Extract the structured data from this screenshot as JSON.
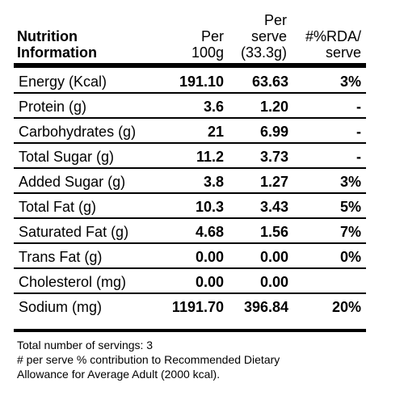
{
  "header": {
    "title_line1": "Nutrition",
    "title_line2": "Information",
    "per100_line1": "Per",
    "per100_line2": "100g",
    "perserve_line1": "Per",
    "perserve_line2": "serve",
    "perserve_line3": "(33.3g)",
    "rda_line1": "#%RDA/",
    "rda_line2": "serve"
  },
  "rows": [
    {
      "name": "Energy (Kcal)",
      "per100": "191.10",
      "perserve": "63.63",
      "rda": "3%"
    },
    {
      "name": "Protein (g)",
      "per100": "3.6",
      "perserve": "1.20",
      "rda": "-"
    },
    {
      "name": "Carbohydrates (g)",
      "per100": "21",
      "perserve": "6.99",
      "rda": "-"
    },
    {
      "name": "Total Sugar (g)",
      "per100": "11.2",
      "perserve": "3.73",
      "rda": "-"
    },
    {
      "name": "Added Sugar (g)",
      "per100": "3.8",
      "perserve": "1.27",
      "rda": "3%"
    },
    {
      "name": "Total Fat (g)",
      "per100": "10.3",
      "perserve": "3.43",
      "rda": "5%"
    },
    {
      "name": "Saturated Fat (g)",
      "per100": "4.68",
      "perserve": "1.56",
      "rda": "7%"
    },
    {
      "name": "Trans Fat (g)",
      "per100": "0.00",
      "perserve": "0.00",
      "rda": "0%"
    },
    {
      "name": "Cholesterol (mg)",
      "per100": "0.00",
      "perserve": "0.00",
      "rda": ""
    },
    {
      "name": "Sodium (mg)",
      "per100": "1191.70",
      "perserve": "396.84",
      "rda": "20%"
    }
  ],
  "footer": {
    "line1": "Total number of servings: 3",
    "line2": "# per serve % contribution to Recommended Dietary",
    "line3": "Allowance for Average Adult (2000 kcal)."
  }
}
